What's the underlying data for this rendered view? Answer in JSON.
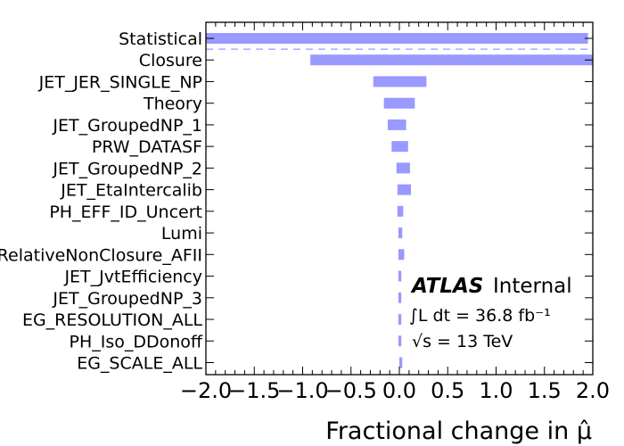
{
  "chart_data": {
    "type": "bar",
    "orientation": "horizontal",
    "xlabel": "Fractional change in μ̂",
    "xlim": [
      -2.0,
      2.0
    ],
    "xticks": [
      "−2.0",
      "−1.5",
      "−1.0",
      "−0.5",
      "0.0",
      "0.5",
      "1.0",
      "1.5",
      "2.0"
    ],
    "bar_color": "#9999ff",
    "categories": [
      "Statistical",
      "Closure",
      "JET_JER_SINGLE_NP",
      "Theory",
      "JET_GroupedNP_1",
      "PRW_DATASF",
      "JET_GroupedNP_2",
      "JET_EtaIntercalib",
      "PH_EFF_ID_Uncert",
      "Lumi",
      "RelativeNonClosure_AFII",
      "JET_JvtEfficiency",
      "JET_GroupedNP_3",
      "EG_RESOLUTION_ALL",
      "PH_Iso_DDonoff",
      "EG_SCALE_ALL"
    ],
    "bars": [
      [
        -2.0,
        1.95
      ],
      [
        -0.92,
        2.0
      ],
      [
        -0.27,
        0.28
      ],
      [
        -0.16,
        0.16
      ],
      [
        -0.12,
        0.07
      ],
      [
        -0.08,
        0.09
      ],
      [
        -0.03,
        0.11
      ],
      [
        -0.02,
        0.12
      ],
      [
        -0.02,
        0.04
      ],
      [
        -0.01,
        0.03
      ],
      [
        -0.01,
        0.05
      ],
      [
        -0.01,
        0.02
      ],
      [
        -0.01,
        0.02
      ],
      [
        -0.01,
        0.02
      ],
      [
        -0.01,
        0.02
      ],
      [
        0.0,
        0.03
      ]
    ],
    "separator_after_index": 0,
    "annotations": {
      "experiment": "ATLAS",
      "status": "Internal",
      "luminosity": "∫L dt = 36.8 fb⁻¹",
      "energy": "√s = 13 TeV"
    }
  }
}
